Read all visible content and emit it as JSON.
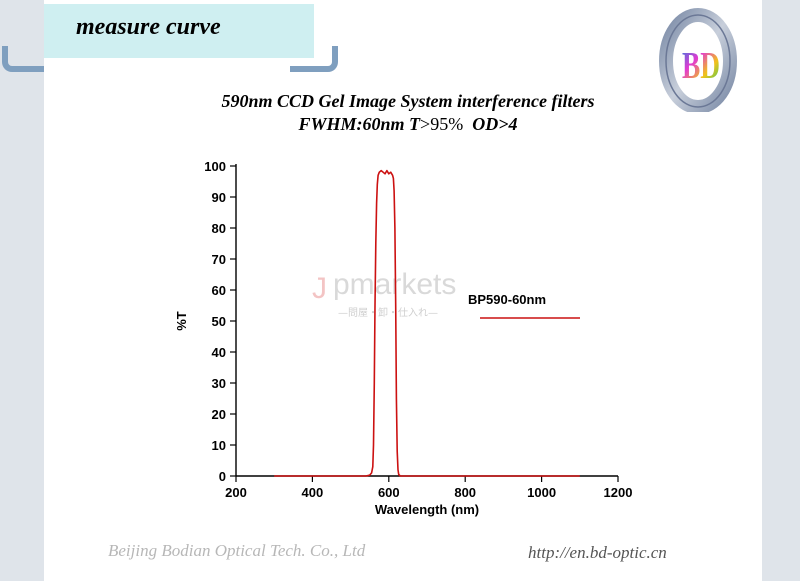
{
  "header": {
    "title": "measure curve"
  },
  "logo": {
    "text": "BD"
  },
  "chart_title": {
    "line1": "590nm CCD Gel Image System interference filters",
    "line2_bold": "FWHM:60nm T",
    "line2_plain": ">95%",
    "line2_tail": "  OD>4"
  },
  "footer": {
    "company": "Beijing Bodian Optical Tech. Co., Ltd",
    "url": "http://en.bd-optic.cn"
  },
  "watermark": {
    "J": "J",
    "brand": "pmarkets",
    "sub": "—問屋・卸・仕入れ—"
  },
  "colors": {
    "curve": "#cc1111",
    "header_box": "#cfeff1",
    "frame": "#7f9fbf"
  },
  "chart_data": {
    "type": "line",
    "title": "590nm CCD Gel Image System interference filters",
    "xlabel": "Wavelength (nm)",
    "ylabel": "%T",
    "xlim": [
      200,
      1200
    ],
    "ylim": [
      0,
      100
    ],
    "xticks": [
      200,
      400,
      600,
      800,
      1000,
      1200
    ],
    "yticks": [
      0,
      10,
      20,
      30,
      40,
      50,
      60,
      70,
      80,
      90,
      100
    ],
    "grid": false,
    "legend_position": "right",
    "series": [
      {
        "name": "BP590-60nm",
        "color": "#cc1111",
        "x": [
          300,
          540,
          550,
          555,
          558,
          560,
          562,
          564,
          566,
          568,
          570,
          572,
          575,
          580,
          585,
          590,
          595,
          600,
          605,
          610,
          612,
          614,
          616,
          618,
          620,
          622,
          624,
          626,
          630,
          640,
          700,
          800,
          900,
          1000,
          1100
        ],
        "y": [
          0,
          0,
          0.3,
          1,
          3,
          10,
          30,
          55,
          75,
          88,
          94,
          97,
          98,
          98.5,
          98,
          97.5,
          98.5,
          97.5,
          98,
          97,
          96,
          92,
          80,
          55,
          25,
          8,
          2,
          0.5,
          0,
          0,
          0,
          0,
          0,
          0,
          0
        ]
      }
    ]
  }
}
